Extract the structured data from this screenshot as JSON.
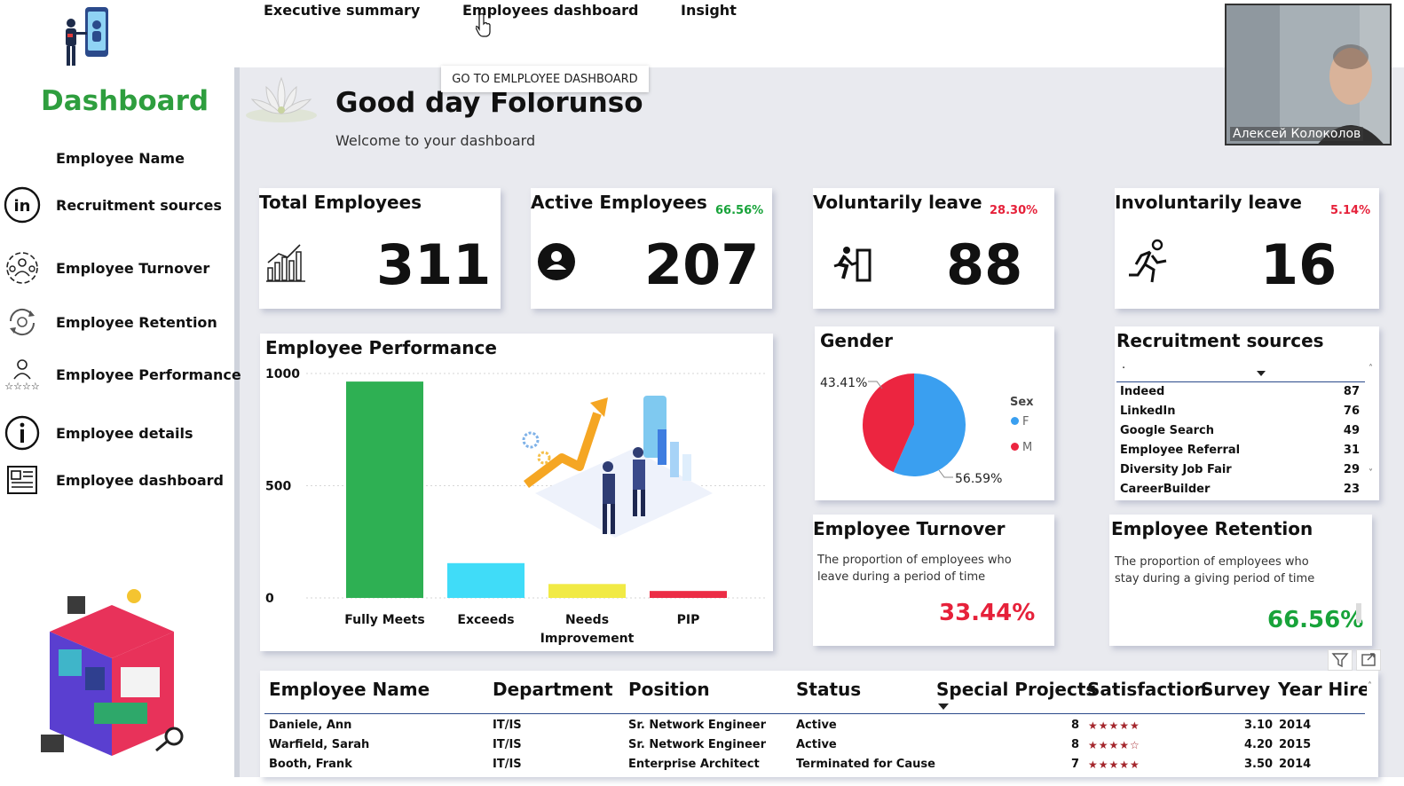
{
  "nav": {
    "items": [
      "Executive summary",
      "Employees dashboard",
      "Insight"
    ],
    "tooltip": "GO TO EMLPLOYEE DASHBOARD"
  },
  "sidebar": {
    "title": "Dashboard",
    "items": [
      {
        "label": "Employee Name",
        "icon": "none"
      },
      {
        "label": "Recruitment sources",
        "icon": "linkedin-icon"
      },
      {
        "label": "Employee Turnover",
        "icon": "people-cycle-icon"
      },
      {
        "label": "Employee Retention",
        "icon": "retention-cycle-icon"
      },
      {
        "label": "Employee Performance",
        "icon": "performance-stars-icon"
      },
      {
        "label": "Employee details",
        "icon": "info-icon"
      },
      {
        "label": "Employee dashboard",
        "icon": "newspaper-icon"
      }
    ]
  },
  "header": {
    "greeting": "Good day Folorunso",
    "welcome": "Welcome to your dashboard"
  },
  "kpis": {
    "total": {
      "title": "Total Employees",
      "value": "311",
      "icon": "chart-growth-icon"
    },
    "active": {
      "title": "Active Employees",
      "value": "207",
      "pct": "66.56%",
      "icon": "user-circle-icon"
    },
    "voluntary": {
      "title": "Voluntarily leave",
      "value": "88",
      "pct": "28.30%",
      "icon": "exit-run-icon"
    },
    "involuntary": {
      "title": "Involuntarily leave",
      "value": "16",
      "pct": "5.14%",
      "icon": "running-person-icon"
    }
  },
  "performance": {
    "title": "Employee Performance"
  },
  "chart_data": [
    {
      "type": "bar",
      "title": "Employee Performance",
      "categories": [
        "Fully Meets",
        "Exceeds",
        "Needs Improvement",
        "PIP"
      ],
      "category_lines": [
        [
          "Fully Meets"
        ],
        [
          "Exceeds"
        ],
        [
          "Needs",
          "Improvement"
        ],
        [
          "PIP"
        ]
      ],
      "values": [
        964,
        155,
        62,
        31
      ],
      "colors": [
        "#2eb053",
        "#40dcf8",
        "#f1ea45",
        "#ec2d46"
      ],
      "yticks": [
        0,
        500,
        1000
      ],
      "ylim": [
        0,
        1000
      ],
      "grid": true
    },
    {
      "type": "pie",
      "title": "Gender",
      "legend_title": "Sex",
      "labels": [
        "F",
        "M"
      ],
      "values": [
        56.59,
        43.41
      ],
      "value_labels": [
        "56.59%",
        "43.41%"
      ],
      "colors": [
        "#3a9ff0",
        "#ec2540"
      ],
      "legend": "right"
    }
  ],
  "gender": {
    "title": "Gender",
    "legend_title": "Sex",
    "f_label": "F",
    "m_label": "M",
    "f_pct": "56.59%",
    "m_pct": "43.41%"
  },
  "recruitment": {
    "title": "Recruitment sources",
    "header_dot": ".",
    "rows": [
      {
        "name": "Indeed",
        "value": "87"
      },
      {
        "name": "LinkedIn",
        "value": "76"
      },
      {
        "name": "Google Search",
        "value": "49"
      },
      {
        "name": "Employee Referral",
        "value": "31"
      },
      {
        "name": "Diversity Job Fair",
        "value": "29"
      },
      {
        "name": "CareerBuilder",
        "value": "23"
      }
    ]
  },
  "turnover": {
    "title": "Employee Turnover",
    "desc": "The proportion of employees who leave during a period of time",
    "value": "33.44%"
  },
  "retention": {
    "title": "Employee Retention",
    "desc": "The proportion of employees who stay during a giving period of time",
    "value": "66.56%"
  },
  "table": {
    "headers": [
      "Employee Name",
      "Department",
      "Position",
      "Status",
      "Special Projects",
      "Satisfaction",
      "Survey",
      "Year Hired"
    ],
    "rows": [
      {
        "name": "Daniele, Ann",
        "dept": "IT/IS",
        "position": "Sr. Network Engineer",
        "status": "Active",
        "projects": "8",
        "stars": "★★★★★",
        "survey": "3.10",
        "year": "2014"
      },
      {
        "name": "Warfield, Sarah",
        "dept": "IT/IS",
        "position": "Sr. Network Engineer",
        "status": "Active",
        "projects": "8",
        "stars": "★★★★☆",
        "survey": "4.20",
        "year": "2015"
      },
      {
        "name": "Booth, Frank",
        "dept": "IT/IS",
        "position": "Enterprise Architect",
        "status": "Terminated for Cause",
        "projects": "7",
        "stars": "★★★★★",
        "survey": "3.50",
        "year": "2014"
      }
    ]
  },
  "webcam": {
    "name": "Алексей Колоколов"
  },
  "colors": {
    "accent_green": "#2e9e3e",
    "pct_green": "#18a33a",
    "pct_red": "#e6213a",
    "canvas": "#e9eaef"
  }
}
